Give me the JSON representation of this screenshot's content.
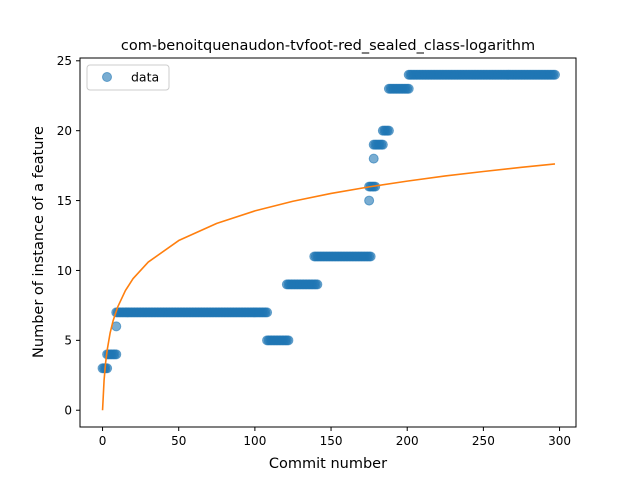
{
  "chart_data": {
    "type": "scatter",
    "title": "com-benoitquenaudon-tvfoot-red_sealed_class-logarithm",
    "xlabel": "Commit number",
    "ylabel": "Number of instance of a feature",
    "xlim": [
      -14.8,
      310.8
    ],
    "ylim": [
      -1.2,
      25.2
    ],
    "x_ticks": [
      0,
      50,
      100,
      150,
      200,
      250,
      300
    ],
    "y_ticks": [
      0,
      5,
      10,
      15,
      20,
      25
    ],
    "grid": false,
    "legend": {
      "position": "top-left",
      "entries": [
        {
          "label": "data",
          "marker": "circle",
          "color": "#1f77b4"
        }
      ]
    },
    "series": [
      {
        "name": "data",
        "kind": "scatter",
        "color": "#1f77b4",
        "alpha": 0.6,
        "segments": [
          {
            "x_from": 0,
            "x_to": 2,
            "y": 3
          },
          {
            "x": 3,
            "y": 3
          },
          {
            "x_from": 3,
            "x_to": 9,
            "y": 4
          },
          {
            "x": 9,
            "y": 6
          },
          {
            "x_from": 9,
            "x_to": 108,
            "y": 7
          },
          {
            "x_from": 108,
            "x_to": 122,
            "y": 5
          },
          {
            "x_from": 121,
            "x_to": 141,
            "y": 9
          },
          {
            "x_from": 139,
            "x_to": 176,
            "y": 11
          },
          {
            "x": 175,
            "y": 15
          },
          {
            "x_from": 175,
            "x_to": 179,
            "y": 16
          },
          {
            "x": 178,
            "y": 18
          },
          {
            "x_from": 178,
            "x_to": 184,
            "y": 19
          },
          {
            "x_from": 184,
            "x_to": 188,
            "y": 20
          },
          {
            "x_from": 188,
            "x_to": 201,
            "y": 23
          },
          {
            "x_from": 201,
            "x_to": 297,
            "y": 24
          }
        ]
      },
      {
        "name": "",
        "kind": "line",
        "color": "#ff7f0e",
        "function": "logarithm",
        "points": [
          [
            0,
            0.0
          ],
          [
            1,
            2.14
          ],
          [
            2,
            3.39
          ],
          [
            3,
            4.28
          ],
          [
            5,
            5.54
          ],
          [
            7,
            6.43
          ],
          [
            10,
            7.4
          ],
          [
            15,
            8.56
          ],
          [
            20,
            9.41
          ],
          [
            30,
            10.6
          ],
          [
            50,
            12.14
          ],
          [
            75,
            13.37
          ],
          [
            100,
            14.26
          ],
          [
            125,
            14.95
          ],
          [
            150,
            15.51
          ],
          [
            175,
            15.98
          ],
          [
            200,
            16.39
          ],
          [
            225,
            16.76
          ],
          [
            250,
            17.08
          ],
          [
            275,
            17.38
          ],
          [
            297,
            17.62
          ]
        ]
      }
    ]
  }
}
